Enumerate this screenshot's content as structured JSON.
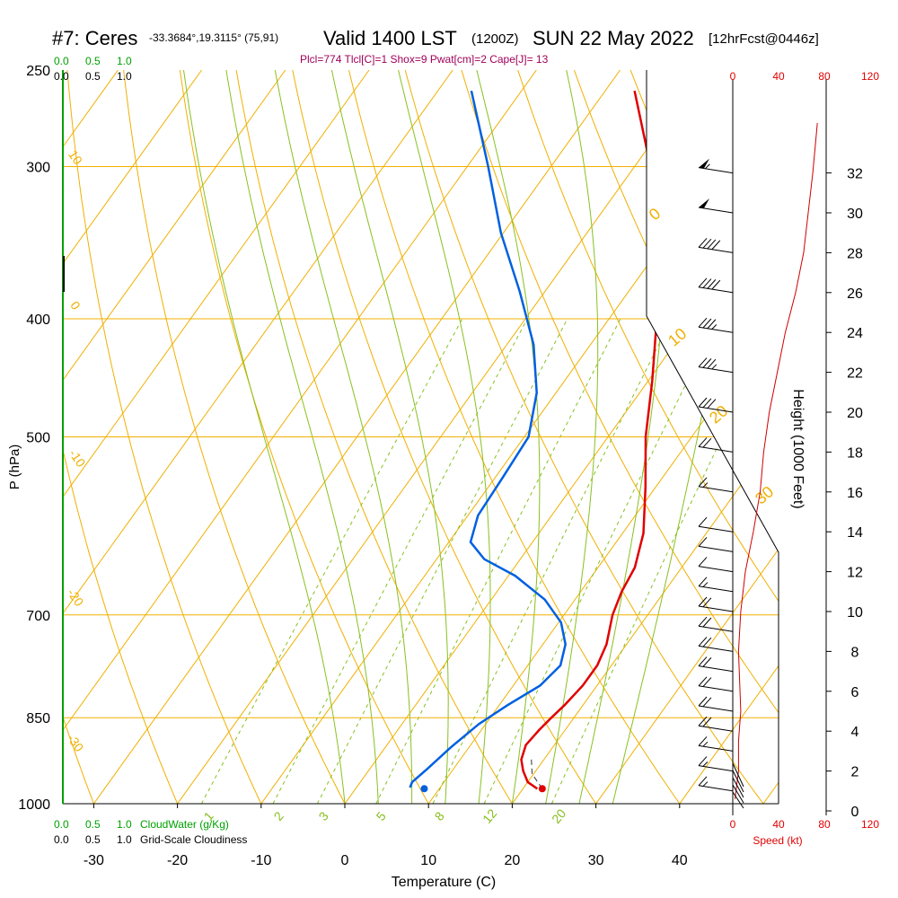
{
  "header": {
    "title_id": "#7: Ceres",
    "coords": "-33.3684°,19.3115° (75,91)",
    "valid": "Valid 1400 LST",
    "zulu": "(1200Z)",
    "date": "SUN 22 May 2022",
    "forecast": "[12hrFcst@0446z]",
    "params": "Plcl=774 Tlcl[C]=1 Shox=9 Pwat[cm]=2 Cape[J]= 13"
  },
  "cloud_scale": {
    "top_green": [
      "0.0",
      "0.5",
      "1.0"
    ],
    "top_black": [
      "0.0",
      "0.5",
      "1.0"
    ],
    "bottom_green": [
      "0.0",
      "0.5",
      "1.0"
    ],
    "bottom_green_label": "CloudWater (g/Kg)",
    "bottom_black": [
      "0.0",
      "0.5",
      "1.0"
    ],
    "bottom_black_label": "Grid-Scale Cloudiness"
  },
  "speed_scale": {
    "top": [
      "0",
      "40",
      "80",
      "120"
    ],
    "bottom": [
      "0",
      "40",
      "80",
      "120"
    ],
    "label": "Speed (kt)"
  },
  "colors": {
    "isotherm": "#f0b000",
    "dry_adiabat": "#f0b000",
    "moist_adiabat": "#88c020",
    "mixing_ratio": "#88c020",
    "temperature": "#e00000",
    "dewpoint": "#0060e0",
    "cloud": "#00a000",
    "params": "#a0005a",
    "speed": "#cc0000"
  },
  "chart_data": {
    "type": "line",
    "title": "",
    "xlabel": "Temperature (C)",
    "ylabel": "P (hPa)",
    "y2label": "Height (1000 Feet)",
    "x_ticks": [
      "-30",
      "-20",
      "-10",
      "0",
      "10",
      "20",
      "30",
      "40"
    ],
    "y_ticks": [
      "250",
      "300",
      "400",
      "500",
      "700",
      "850",
      "1000"
    ],
    "height_ticks": [
      "0",
      "2",
      "4",
      "6",
      "8",
      "10",
      "12",
      "14",
      "16",
      "18",
      "20",
      "22",
      "24",
      "26",
      "28",
      "30",
      "32"
    ],
    "xlim": [
      -35,
      51
    ],
    "ylim": [
      1000,
      250
    ],
    "dry_adiabat_labels": [
      "10",
      "0",
      "-10",
      "-20",
      "-30"
    ],
    "isotherm_labels": [
      "0",
      "10",
      "20",
      "30"
    ],
    "mixing_ratio_labels": [
      "1",
      "2",
      "3",
      "5",
      "8",
      "12",
      "20"
    ],
    "surface": {
      "pressure": 972,
      "temperature": 22.3,
      "dewpoint": 8.2
    },
    "series": [
      {
        "values": [
          {
            "p": 972,
            "t": 21.7
          },
          {
            "p": 960,
            "t": 20.0
          },
          {
            "p": 940,
            "t": 18.5
          },
          {
            "p": 920,
            "t": 17.3
          },
          {
            "p": 895,
            "t": 16.6
          },
          {
            "p": 870,
            "t": 16.9
          },
          {
            "p": 850,
            "t": 17.3
          },
          {
            "p": 830,
            "t": 17.8
          },
          {
            "p": 800,
            "t": 18.3
          },
          {
            "p": 770,
            "t": 18.3
          },
          {
            "p": 740,
            "t": 17.6
          },
          {
            "p": 700,
            "t": 15.8
          },
          {
            "p": 670,
            "t": 14.9
          },
          {
            "p": 640,
            "t": 14.4
          },
          {
            "p": 600,
            "t": 12.5
          },
          {
            "p": 550,
            "t": 8.8
          },
          {
            "p": 500,
            "t": 4.5
          },
          {
            "p": 450,
            "t": 0.5
          },
          {
            "p": 400,
            "t": -4.3
          },
          {
            "p": 350,
            "t": -10.3
          },
          {
            "p": 300,
            "t": -18.1
          },
          {
            "p": 260,
            "t": -26.5
          }
        ]
      },
      {
        "values": [
          {
            "p": 970,
            "t": 6.4
          },
          {
            "p": 960,
            "t": 6.2
          },
          {
            "p": 935,
            "t": 6.9
          },
          {
            "p": 900,
            "t": 7.8
          },
          {
            "p": 860,
            "t": 9.2
          },
          {
            "p": 830,
            "t": 11.0
          },
          {
            "p": 800,
            "t": 13.2
          },
          {
            "p": 770,
            "t": 13.9
          },
          {
            "p": 740,
            "t": 12.7
          },
          {
            "p": 710,
            "t": 10.3
          },
          {
            "p": 680,
            "t": 6.4
          },
          {
            "p": 650,
            "t": 0.8
          },
          {
            "p": 630,
            "t": -4.3
          },
          {
            "p": 610,
            "t": -7.4
          },
          {
            "p": 580,
            "t": -8.8
          },
          {
            "p": 540,
            "t": -9.1
          },
          {
            "p": 500,
            "t": -9.5
          },
          {
            "p": 460,
            "t": -12.3
          },
          {
            "p": 420,
            "t": -16.8
          },
          {
            "p": 380,
            "t": -23.0
          },
          {
            "p": 340,
            "t": -30.3
          },
          {
            "p": 300,
            "t": -37.5
          },
          {
            "p": 260,
            "t": -46.0
          }
        ]
      }
    ],
    "wind_barbs": [
      {
        "height_kft": 1.0,
        "speed_kt": 15
      },
      {
        "height_kft": 2.0,
        "speed_kt": 15
      },
      {
        "height_kft": 3.0,
        "speed_kt": 15
      },
      {
        "height_kft": 4.0,
        "speed_kt": 20
      },
      {
        "height_kft": 5.0,
        "speed_kt": 20
      },
      {
        "height_kft": 6.0,
        "speed_kt": 20
      },
      {
        "height_kft": 7.0,
        "speed_kt": 20
      },
      {
        "height_kft": 8.0,
        "speed_kt": 20
      },
      {
        "height_kft": 9.0,
        "speed_kt": 20
      },
      {
        "height_kft": 10.0,
        "speed_kt": 20
      },
      {
        "height_kft": 11.0,
        "speed_kt": 15
      },
      {
        "height_kft": 12.0,
        "speed_kt": 10
      },
      {
        "height_kft": 13.0,
        "speed_kt": 10
      },
      {
        "height_kft": 14.0,
        "speed_kt": 10
      },
      {
        "height_kft": 16.0,
        "speed_kt": 15
      },
      {
        "height_kft": 18.0,
        "speed_kt": 20
      },
      {
        "height_kft": 20.0,
        "speed_kt": 30
      },
      {
        "height_kft": 22.0,
        "speed_kt": 35
      },
      {
        "height_kft": 24.0,
        "speed_kt": 35
      },
      {
        "height_kft": 26.0,
        "speed_kt": 40
      },
      {
        "height_kft": 28.0,
        "speed_kt": 40
      },
      {
        "height_kft": 30.0,
        "speed_kt": 50
      },
      {
        "height_kft": 32.0,
        "speed_kt": 55
      }
    ],
    "speed_profile": [
      {
        "height_kft": 0.6,
        "speed_kt": 2
      },
      {
        "height_kft": 2.0,
        "speed_kt": 5
      },
      {
        "height_kft": 3.5,
        "speed_kt": 5
      },
      {
        "height_kft": 5.0,
        "speed_kt": 7
      },
      {
        "height_kft": 8.0,
        "speed_kt": 5
      },
      {
        "height_kft": 10.0,
        "speed_kt": 7
      },
      {
        "height_kft": 12.0,
        "speed_kt": 11
      },
      {
        "height_kft": 14.0,
        "speed_kt": 18
      },
      {
        "height_kft": 16.0,
        "speed_kt": 24
      },
      {
        "height_kft": 18.0,
        "speed_kt": 27
      },
      {
        "height_kft": 20.0,
        "speed_kt": 32
      },
      {
        "height_kft": 22.0,
        "speed_kt": 39
      },
      {
        "height_kft": 24.0,
        "speed_kt": 46
      },
      {
        "height_kft": 26.0,
        "speed_kt": 55
      },
      {
        "height_kft": 28.0,
        "speed_kt": 62
      },
      {
        "height_kft": 30.0,
        "speed_kt": 66
      },
      {
        "height_kft": 32.0,
        "speed_kt": 70
      },
      {
        "height_kft": 34.5,
        "speed_kt": 74
      }
    ]
  }
}
